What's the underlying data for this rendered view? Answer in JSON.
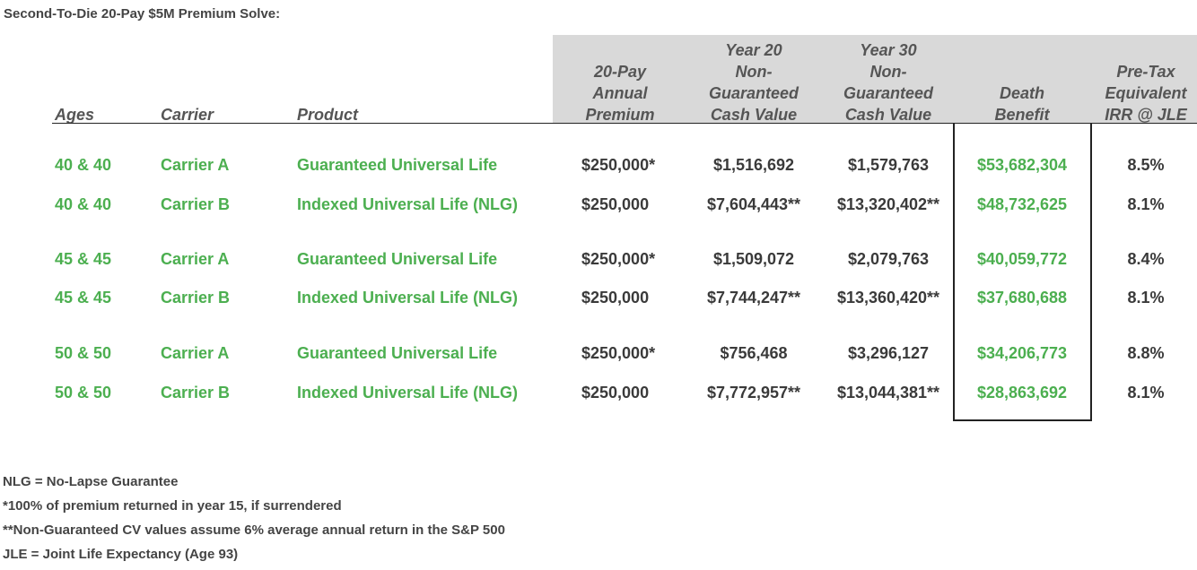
{
  "title": "Second-To-Die 20-Pay $5M Premium Solve:",
  "headers": {
    "ages": "Ages",
    "carrier": "Carrier",
    "product": "Product",
    "premium": "20-Pay\nAnnual\nPremium",
    "y20": "Year 20\nNon-\nGuaranteed\nCash Value",
    "y30": "Year 30\nNon-\nGuaranteed\nCash Value",
    "db": "Death\nBenefit",
    "irr": "Pre-Tax\nEquivalent\nIRR @ JLE"
  },
  "rows": [
    {
      "ages": "40 & 40",
      "carrier": "Carrier A",
      "product": "Guaranteed Universal Life",
      "premium": "$250,000*",
      "y20": "$1,516,692",
      "y30": "$1,579,763",
      "db": "$53,682,304",
      "irr": "8.5%"
    },
    {
      "ages": "40 & 40",
      "carrier": "Carrier B",
      "product": "Indexed Universal Life (NLG)",
      "premium": "$250,000",
      "y20": "$7,604,443**",
      "y30": "$13,320,402**",
      "db": "$48,732,625",
      "irr": "8.1%"
    },
    {
      "ages": "45 & 45",
      "carrier": "Carrier A",
      "product": "Guaranteed Universal Life",
      "premium": "$250,000*",
      "y20": "$1,509,072",
      "y30": "$2,079,763",
      "db": "$40,059,772",
      "irr": "8.4%"
    },
    {
      "ages": "45 & 45",
      "carrier": "Carrier B",
      "product": "Indexed Universal Life (NLG)",
      "premium": "$250,000",
      "y20": "$7,744,247**",
      "y30": "$13,360,420**",
      "db": "$37,680,688",
      "irr": "8.1%"
    },
    {
      "ages": "50 & 50",
      "carrier": "Carrier A",
      "product": "Guaranteed Universal Life",
      "premium": "$250,000*",
      "y20": "$756,468",
      "y30": "$3,296,127",
      "db": "$34,206,773",
      "irr": "8.8%"
    },
    {
      "ages": "50 & 50",
      "carrier": "Carrier B",
      "product": "Indexed Universal Life (NLG)",
      "premium": "$250,000",
      "y20": "$7,772,957**",
      "y30": "$13,044,381**",
      "db": "$28,863,692",
      "irr": "8.1%"
    }
  ],
  "footnotes": [
    "NLG = No-Lapse Guarantee",
    "*100% of premium returned in year 15, if surrendered",
    "**Non-Guaranteed CV values assume 6% average annual return in the S&P 500",
    "JLE = Joint Life Expectancy (Age 93)"
  ],
  "colors": {
    "green": "#4caf50",
    "header_bg": "#d9d9d9"
  }
}
